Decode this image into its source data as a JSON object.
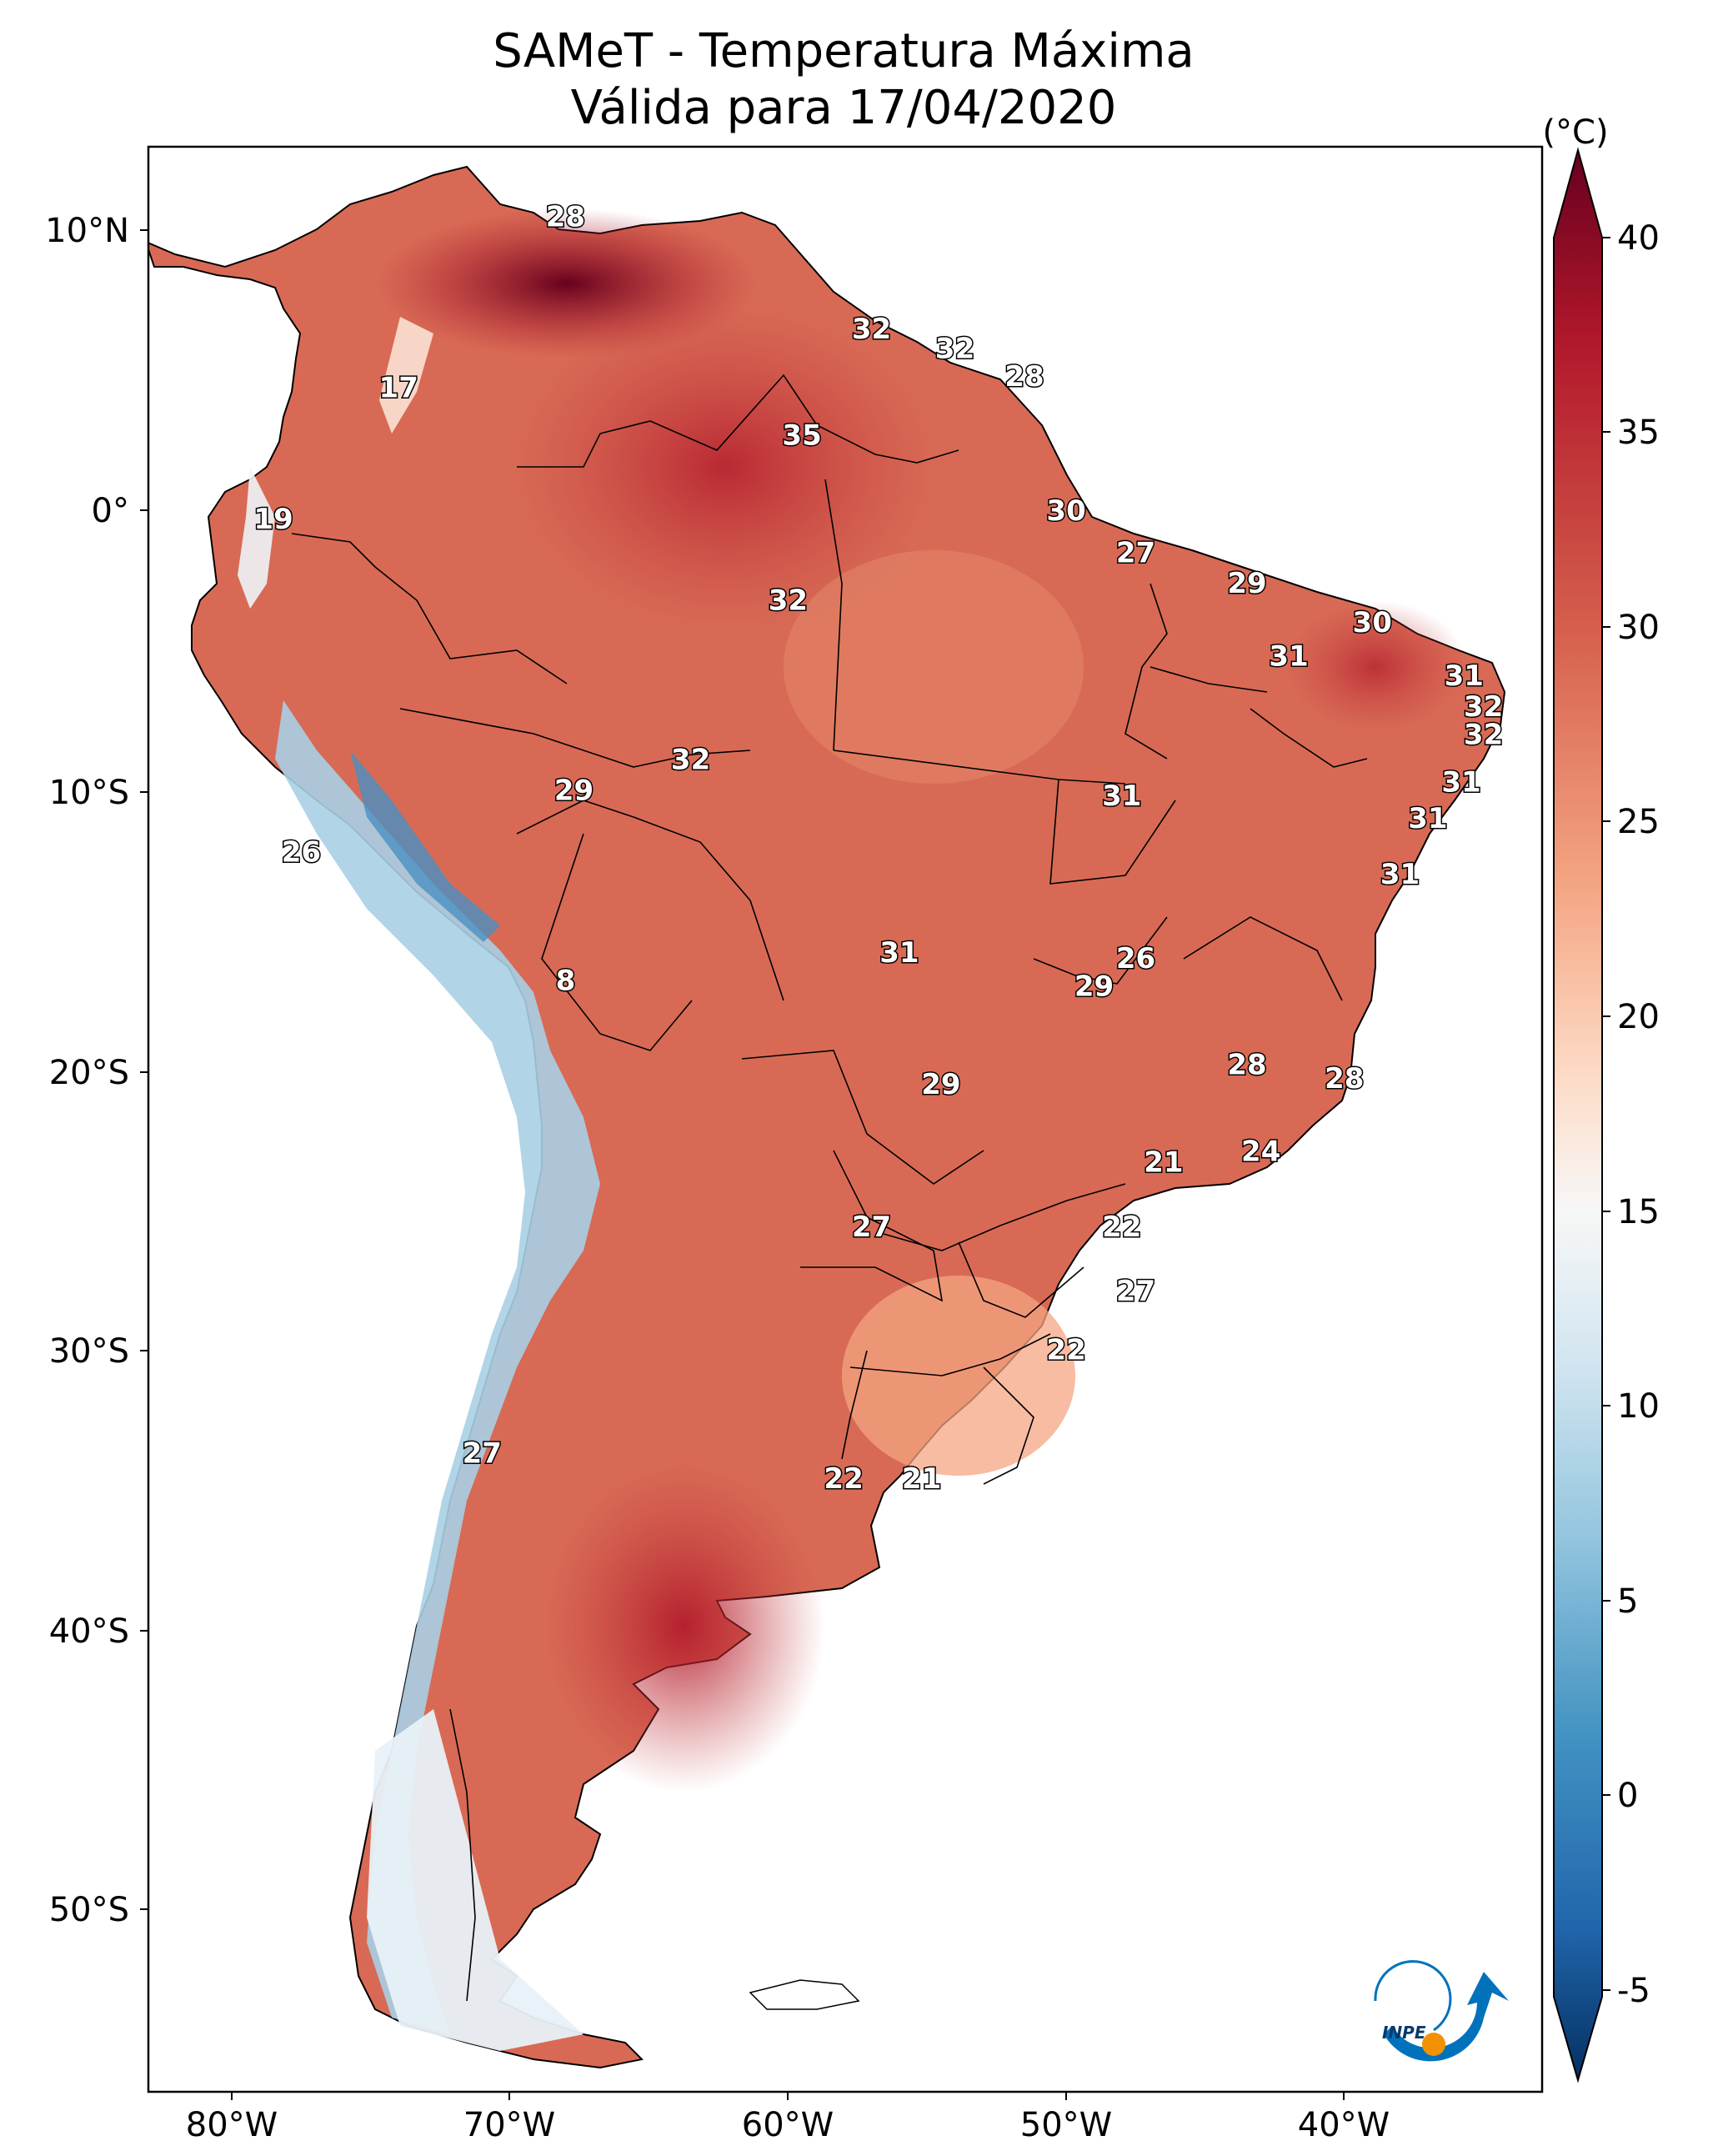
{
  "title": {
    "line1": "SAMeT - Temperatura Máxima",
    "line2": "Válida para 17/04/2020"
  },
  "axes": {
    "lon_ticks": [
      "80°W",
      "70°W",
      "60°W",
      "50°W",
      "40°W"
    ],
    "lat_ticks": [
      "10°N",
      "0°",
      "10°S",
      "20°S",
      "30°S",
      "40°S",
      "50°S"
    ]
  },
  "colorbar": {
    "unit": "(°C)",
    "ticks": [
      "40",
      "35",
      "30",
      "25",
      "20",
      "15",
      "10",
      "5",
      "0",
      "-5"
    ],
    "colors": [
      "#67001f",
      "#b2182b",
      "#d6604d",
      "#f4a582",
      "#fddbc7",
      "#f7f7f7",
      "#d1e5f0",
      "#92c5de",
      "#4393c3",
      "#2166ac",
      "#053061"
    ]
  },
  "logo": {
    "text": "INPE"
  },
  "contour_labels": [
    {
      "text": "28",
      "lon": -68,
      "lat": 10.5
    },
    {
      "text": "32",
      "lon": -57,
      "lat": 6.5
    },
    {
      "text": "32",
      "lon": -54,
      "lat": 5.8
    },
    {
      "text": "28",
      "lon": -51.5,
      "lat": 4.8
    },
    {
      "text": "17",
      "lon": -74,
      "lat": 4.4
    },
    {
      "text": "35",
      "lon": -59.5,
      "lat": 2.7
    },
    {
      "text": "30",
      "lon": -50,
      "lat": 0
    },
    {
      "text": "19",
      "lon": -78.5,
      "lat": -0.3
    },
    {
      "text": "27",
      "lon": -47.5,
      "lat": -1.5
    },
    {
      "text": "29",
      "lon": -43.5,
      "lat": -2.6
    },
    {
      "text": "32",
      "lon": -60,
      "lat": -3.2
    },
    {
      "text": "30",
      "lon": -39,
      "lat": -4
    },
    {
      "text": "31",
      "lon": -42,
      "lat": -5.2
    },
    {
      "text": "31",
      "lon": -35.7,
      "lat": -5.9
    },
    {
      "text": "32",
      "lon": -35,
      "lat": -7
    },
    {
      "text": "32",
      "lon": -35,
      "lat": -8
    },
    {
      "text": "32",
      "lon": -63.5,
      "lat": -8.9
    },
    {
      "text": "31",
      "lon": -35.8,
      "lat": -9.7
    },
    {
      "text": "29",
      "lon": -67.7,
      "lat": -10
    },
    {
      "text": "31",
      "lon": -48,
      "lat": -10.2
    },
    {
      "text": "31",
      "lon": -37,
      "lat": -11
    },
    {
      "text": "26",
      "lon": -77.5,
      "lat": -12.2
    },
    {
      "text": "31",
      "lon": -38,
      "lat": -13
    },
    {
      "text": "31",
      "lon": -56,
      "lat": -15.8
    },
    {
      "text": "26",
      "lon": -47.5,
      "lat": -16
    },
    {
      "text": "29",
      "lon": -49,
      "lat": -17
    },
    {
      "text": "8",
      "lon": -68,
      "lat": -16.8
    },
    {
      "text": "28",
      "lon": -43.5,
      "lat": -19.8
    },
    {
      "text": "28",
      "lon": -40,
      "lat": -20.3
    },
    {
      "text": "29",
      "lon": -54.5,
      "lat": -20.5
    },
    {
      "text": "24",
      "lon": -43,
      "lat": -22.9
    },
    {
      "text": "21",
      "lon": -46.5,
      "lat": -23.3
    },
    {
      "text": "27",
      "lon": -57,
      "lat": -25.6
    },
    {
      "text": "22",
      "lon": -48,
      "lat": -25.6
    },
    {
      "text": "27",
      "lon": -47.5,
      "lat": -27.9
    },
    {
      "text": "22",
      "lon": -50,
      "lat": -30
    },
    {
      "text": "27",
      "lon": -71,
      "lat": -33.7
    },
    {
      "text": "22",
      "lon": -58,
      "lat": -34.6
    },
    {
      "text": "21",
      "lon": -55.2,
      "lat": -34.6
    }
  ]
}
